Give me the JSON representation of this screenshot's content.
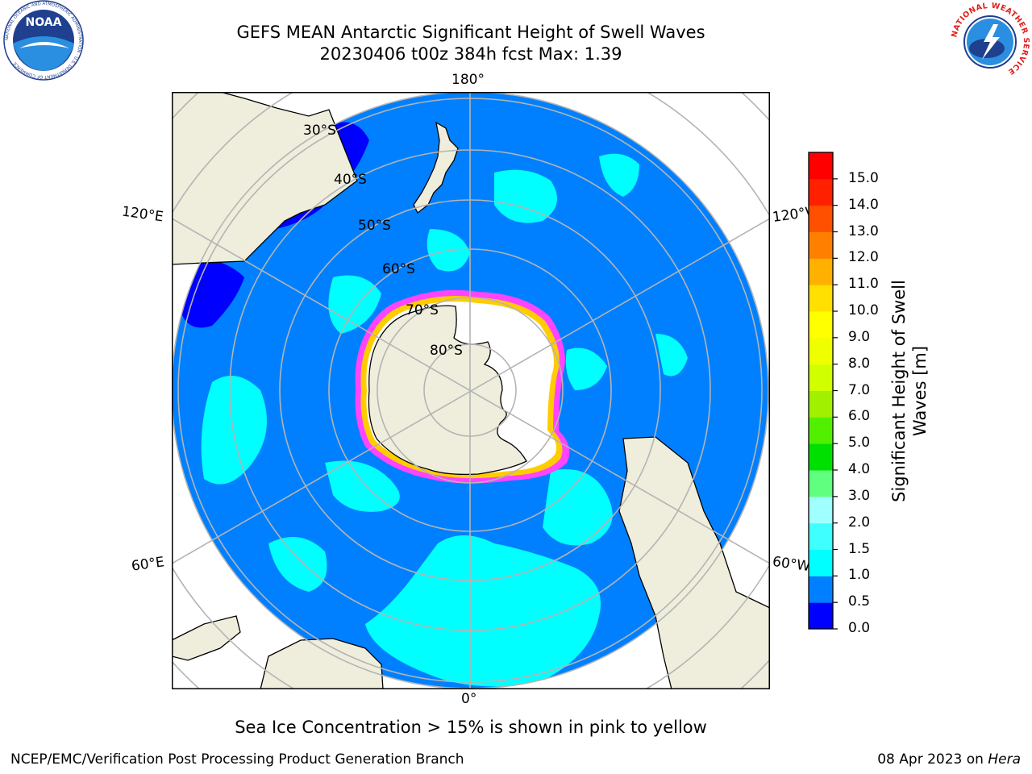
{
  "title": {
    "line1": "GEFS MEAN Antarctic Significant Height of Swell Waves",
    "line2": "20230406 t00z 384h fcst   Max: 1.39"
  },
  "map": {
    "meridian_labels": {
      "top": "180°",
      "bottom": "0°",
      "upper_left": "120°E",
      "upper_right": "120°W",
      "lower_left": "60°E",
      "lower_right": "60°W"
    },
    "latitude_labels": [
      "30°S",
      "40°S",
      "50°S",
      "60°S",
      "70°S",
      "80°S"
    ],
    "colors": {
      "ocean": "#0080ff",
      "land": "#efeddc",
      "ice": "#ffffff",
      "swell_1_5": "#00ffff",
      "swell_0_5": "#0000ff",
      "ice_edge": "#ff44ff",
      "ice_edge_inner": "#ffcc00",
      "grid": "#b4b4b4"
    }
  },
  "colorbar": {
    "title_line1": "Significant Height of Swell",
    "title_line2": "Waves [m]",
    "ticks": [
      "0.0",
      "0.5",
      "1.0",
      "1.5",
      "2.0",
      "3.0",
      "4.0",
      "5.0",
      "6.0",
      "7.0",
      "8.0",
      "9.0",
      "10.0",
      "11.0",
      "12.0",
      "13.0",
      "14.0",
      "15.0"
    ],
    "colors": [
      "#0000ff",
      "#0080ff",
      "#00ffff",
      "#40ffff",
      "#a0ffff",
      "#60ff80",
      "#00e000",
      "#50f000",
      "#a0f000",
      "#d0ff00",
      "#f0ff00",
      "#ffff00",
      "#ffe000",
      "#ffb000",
      "#ff8000",
      "#ff5000",
      "#ff2000",
      "#ff0000"
    ]
  },
  "caption": "Sea Ice Concentration > 15% is shown in pink to yellow",
  "footer": {
    "left": "NCEP/EMC/Verification Post Processing Product Generation Branch",
    "right_date": "08 Apr 2023 on ",
    "right_host": "Hera"
  },
  "logos": {
    "noaa": "NOAA",
    "noaa_ring": "NATIONAL OCEANIC AND ATMOSPHERIC ADMINISTRATION · U.S. DEPARTMENT OF COMMERCE",
    "nws_ring": "NATIONAL WEATHER SERVICE"
  }
}
